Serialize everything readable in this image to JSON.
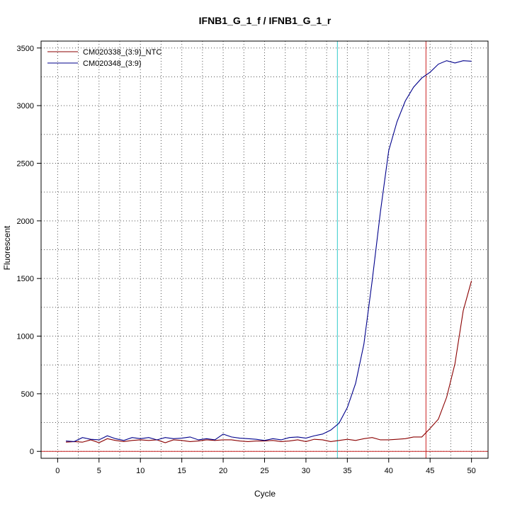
{
  "chart_data": {
    "type": "line",
    "title": "IFNB1_G_1_f / IFNB1_G_1_r",
    "xlabel": "Cycle",
    "ylabel": "Fluorescent",
    "xlim": [
      -2,
      52
    ],
    "ylim": [
      -60,
      3560
    ],
    "x_ticks": [
      0,
      5,
      10,
      15,
      20,
      25,
      30,
      35,
      40,
      45,
      50
    ],
    "x_tick_labels": [
      "0",
      "5",
      "10",
      "15",
      "20",
      "25",
      "30",
      "35",
      "40",
      "45",
      "50"
    ],
    "y_ticks": [
      0,
      500,
      1000,
      1500,
      2000,
      2500,
      3000,
      3500
    ],
    "y_tick_labels": [
      "0",
      "500",
      "1000",
      "1500",
      "2000",
      "2500",
      "3000",
      "3500"
    ],
    "grid": true,
    "grid_style": "dotted",
    "legend_position": "top-left",
    "threshold_y": 0,
    "threshold_color": "#cc2222",
    "vlines": [
      {
        "x": 33.8,
        "color": "#33cccc"
      },
      {
        "x": 44.5,
        "color": "#cc2222"
      }
    ],
    "x": [
      1,
      2,
      3,
      4,
      5,
      6,
      7,
      8,
      9,
      10,
      11,
      12,
      13,
      14,
      15,
      16,
      17,
      18,
      19,
      20,
      21,
      22,
      23,
      24,
      25,
      26,
      27,
      28,
      29,
      30,
      31,
      32,
      33,
      34,
      35,
      36,
      37,
      38,
      39,
      40,
      41,
      42,
      43,
      44,
      45,
      46,
      47,
      48,
      49,
      50
    ],
    "series": [
      {
        "name": "CM020338_(3:9)_NTC",
        "color": "#8b0000",
        "values": [
          80,
          85,
          80,
          100,
          75,
          110,
          95,
          85,
          95,
          100,
          95,
          100,
          75,
          100,
          95,
          85,
          90,
          100,
          95,
          100,
          100,
          90,
          85,
          90,
          90,
          95,
          85,
          90,
          100,
          85,
          105,
          100,
          85,
          95,
          105,
          95,
          110,
          120,
          100,
          100,
          105,
          110,
          125,
          125,
          200,
          280,
          470,
          760,
          1220,
          1480
        ]
      },
      {
        "name": "CM020348_(3:9)",
        "color": "#00008b",
        "values": [
          90,
          85,
          120,
          105,
          100,
          135,
          110,
          95,
          120,
          110,
          120,
          100,
          120,
          110,
          115,
          125,
          100,
          110,
          100,
          150,
          125,
          115,
          110,
          105,
          95,
          110,
          100,
          120,
          125,
          115,
          135,
          150,
          185,
          245,
          380,
          590,
          930,
          1480,
          2080,
          2610,
          2860,
          3040,
          3160,
          3240,
          3290,
          3360,
          3390,
          3370,
          3390,
          3385
        ]
      }
    ]
  }
}
